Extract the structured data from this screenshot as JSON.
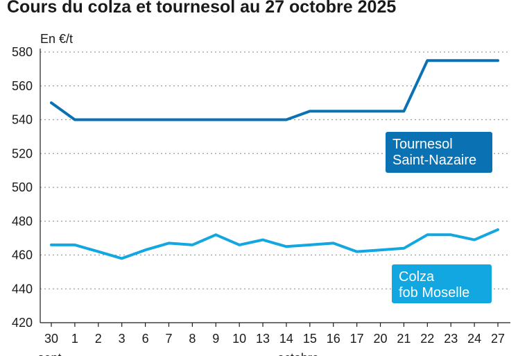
{
  "chart_data": {
    "type": "line",
    "title": "Cours du colza et tournesol au 27 octobre 2025",
    "unit_label": "En €/t",
    "x": [
      "30",
      "1",
      "2",
      "3",
      "6",
      "7",
      "8",
      "9",
      "10",
      "13",
      "14",
      "15",
      "16",
      "17",
      "20",
      "21",
      "22",
      "23",
      "24",
      "27"
    ],
    "month_labels": [
      "sept.",
      "octobre"
    ],
    "ylim": [
      420,
      580
    ],
    "yticks": [
      420,
      440,
      460,
      480,
      500,
      520,
      540,
      560,
      580
    ],
    "grid": true,
    "series": [
      {
        "name": "Tournesol Saint-Nazaire",
        "label_lines": [
          "Tournesol",
          "Saint-Nazaire"
        ],
        "color": "#0a71b3",
        "values": [
          550,
          540,
          540,
          540,
          540,
          540,
          540,
          540,
          540,
          540,
          540,
          545,
          545,
          545,
          545,
          545,
          575,
          575,
          575,
          575
        ]
      },
      {
        "name": "Colza fob Moselle",
        "label_lines": [
          "Colza",
          "fob Moselle"
        ],
        "color": "#12a7e0",
        "values": [
          466,
          466,
          462,
          458,
          463,
          467,
          466,
          472,
          466,
          469,
          465,
          466,
          467,
          462,
          463,
          464,
          472,
          472,
          469,
          475
        ]
      }
    ]
  }
}
